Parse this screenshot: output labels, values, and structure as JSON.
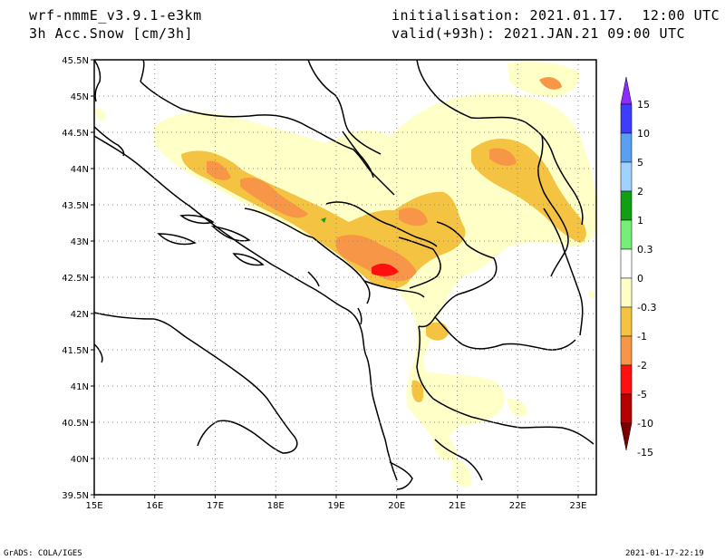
{
  "header": {
    "model": "wrf-nmmE_v3.9.1-e3km",
    "field": "3h Acc.Snow [cm/3h]",
    "init": "initialisation: 2021.01.17.  12:00 UTC",
    "valid": "valid(+93h): 2021.JAN.21 09:00 UTC"
  },
  "axes": {
    "lat_labels": [
      "45.5N",
      "45N",
      "44.5N",
      "44N",
      "43.5N",
      "43N",
      "42.5N",
      "42N",
      "41.5N",
      "41N",
      "40.5N",
      "40N",
      "39.5N"
    ],
    "lon_labels": [
      "15E",
      "16E",
      "17E",
      "18E",
      "19E",
      "20E",
      "21E",
      "22E",
      "23E"
    ],
    "lon_range": [
      15,
      23.3
    ],
    "lat_range": [
      39.5,
      45.5
    ]
  },
  "colorbar": {
    "labels": [
      "15",
      "10",
      "5",
      "2",
      "1",
      "0.3",
      "0",
      "-0.3",
      "-1",
      "-2",
      "-5",
      "-10",
      "-15"
    ],
    "colors": [
      "#8e2bff",
      "#3d3dff",
      "#5aa0f0",
      "#a0d2ff",
      "#11a011",
      "#77ee77",
      "#ffffff",
      "#ffffc8",
      "#f5c342",
      "#f79646",
      "#ff1010",
      "#b40000",
      "#7a0000"
    ]
  },
  "footer": {
    "left": "GrADS: COLA/IGES",
    "right": "2021-01-17-22:19"
  }
}
